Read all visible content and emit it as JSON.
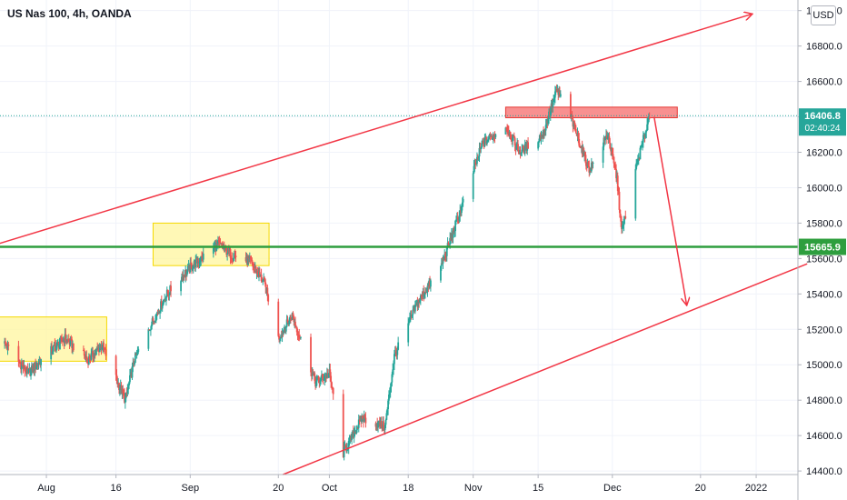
{
  "title": "US Nas 100, 4h, OANDA",
  "currency_badge": "USD",
  "colors": {
    "up": "#26a69a",
    "down": "#ef5350",
    "channel": "#f23645",
    "support": "#2e9e3e",
    "zone_fill": "#fff59d",
    "resistance_zone": "#f77c7c",
    "price_line": "#26a69a"
  },
  "chart_data": {
    "type": "candlestick",
    "symbol": "US Nas 100",
    "timeframe": "4h",
    "source": "OANDA",
    "y_ticks": [
      "17000.0",
      "16800.0",
      "16600.0",
      "16400.0",
      "16200.0",
      "16000.0",
      "15800.0",
      "15600.0",
      "15400.0",
      "15200.0",
      "15000.0",
      "14800.0",
      "14600.0",
      "14400.0"
    ],
    "x_ticks": [
      "Aug",
      "16",
      "Sep",
      "20",
      "Oct",
      "18",
      "Nov",
      "15",
      "Dec",
      "20",
      "2022"
    ],
    "ylim": [
      14380,
      17060
    ],
    "last_price": "16406.8",
    "countdown": "02:40:24",
    "support_level": "15665.9",
    "series": [
      {
        "date": "2021-07-23",
        "close": 15120
      },
      {
        "date": "2021-07-28",
        "close": 14950
      },
      {
        "date": "2021-08-02",
        "close": 15080
      },
      {
        "date": "2021-08-05",
        "close": 15150
      },
      {
        "date": "2021-08-10",
        "close": 15030
      },
      {
        "date": "2021-08-13",
        "close": 15110
      },
      {
        "date": "2021-08-18",
        "close": 14800
      },
      {
        "date": "2021-08-20",
        "close": 15030
      },
      {
        "date": "2021-08-24",
        "close": 15250
      },
      {
        "date": "2021-08-27",
        "close": 15400
      },
      {
        "date": "2021-09-01",
        "close": 15550
      },
      {
        "date": "2021-09-07",
        "close": 15680
      },
      {
        "date": "2021-09-10",
        "close": 15620
      },
      {
        "date": "2021-09-14",
        "close": 15580
      },
      {
        "date": "2021-09-17",
        "close": 15460
      },
      {
        "date": "2021-09-20",
        "close": 15150
      },
      {
        "date": "2021-09-23",
        "close": 15280
      },
      {
        "date": "2021-09-28",
        "close": 14900
      },
      {
        "date": "2021-10-01",
        "close": 14950
      },
      {
        "date": "2021-10-04",
        "close": 14500
      },
      {
        "date": "2021-10-08",
        "close": 14700
      },
      {
        "date": "2021-10-13",
        "close": 14650
      },
      {
        "date": "2021-10-15",
        "close": 15050
      },
      {
        "date": "2021-10-20",
        "close": 15350
      },
      {
        "date": "2021-10-25",
        "close": 15550
      },
      {
        "date": "2021-10-29",
        "close": 15850
      },
      {
        "date": "2021-11-03",
        "close": 16250
      },
      {
        "date": "2021-11-08",
        "close": 16350
      },
      {
        "date": "2021-11-11",
        "close": 16200
      },
      {
        "date": "2021-11-16",
        "close": 16300
      },
      {
        "date": "2021-11-19",
        "close": 16550
      },
      {
        "date": "2021-11-22",
        "close": 16400
      },
      {
        "date": "2021-11-26",
        "close": 16100
      },
      {
        "date": "2021-11-30",
        "close": 16300
      },
      {
        "date": "2021-12-02",
        "close": 16050
      },
      {
        "date": "2021-12-03",
        "close": 15750
      },
      {
        "date": "2021-12-06",
        "close": 16100
      },
      {
        "date": "2021-12-09",
        "close": 16407
      }
    ],
    "annotations": {
      "upper_channel": [
        {
          "date": "2021-07-10",
          "price": 15590
        },
        {
          "date": "2021-12-31",
          "price": 16980
        }
      ],
      "lower_channel": [
        {
          "date": "2021-09-21",
          "price": 14380
        },
        {
          "date": "2022-01-12",
          "price": 15570
        }
      ],
      "support_line": {
        "price": 15665.9
      },
      "zones": [
        {
          "date_from": "2021-07-21",
          "date_to": "2021-08-14",
          "price_from": 15020,
          "price_to": 15270
        },
        {
          "date_from": "2021-08-24",
          "date_to": "2021-09-18",
          "price_from": 15560,
          "price_to": 15800
        },
        {
          "date_from": "2021-11-08",
          "date_to": "2021-12-15",
          "price_from": 16395,
          "price_to": 16455
        }
      ],
      "projection_arrow": [
        {
          "date": "2021-12-10",
          "price": 16400
        },
        {
          "date": "2021-12-17",
          "price": 15340
        }
      ]
    }
  }
}
